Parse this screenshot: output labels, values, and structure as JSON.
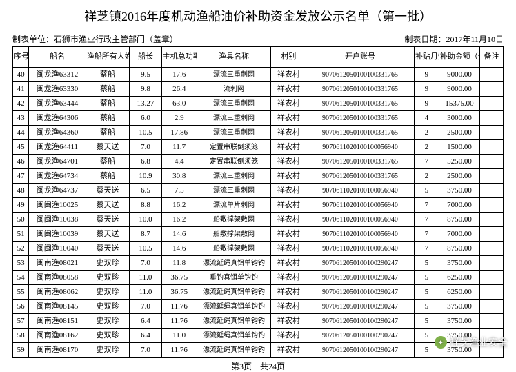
{
  "title": "祥芝镇2016年度机动渔船油价补助资金发放公示名单（第一批）",
  "meta": {
    "left_label": "制表单位：",
    "left_value": "石狮市渔业行政主管部门（盖章）",
    "right_label": "制表日期：",
    "right_value": "2017年11月10日"
  },
  "headers": {
    "seq": "序号",
    "ship": "船名",
    "owner": "渔船所有人姓　名",
    "len": "船长",
    "power": "主机总功率(kW)",
    "gear": "渔具名称",
    "village": "村别",
    "account": "开户账号",
    "months": "补贴月数",
    "amount": "补助金额（元）",
    "remark": "备注"
  },
  "rows": [
    {
      "seq": "40",
      "ship": "闽龙渔63312",
      "owner": "蔡船",
      "len": "9.5",
      "power": "17.6",
      "gear": "漂流三重刺网",
      "village": "祥农村",
      "account": "9070612050100100331765",
      "months": "9",
      "amount": "9000.00",
      "remark": ""
    },
    {
      "seq": "41",
      "ship": "闽龙渔63330",
      "owner": "蔡船",
      "len": "9.8",
      "power": "26.4",
      "gear": "流刺网",
      "village": "祥农村",
      "account": "9070612050100100331765",
      "months": "9",
      "amount": "9000.00",
      "remark": ""
    },
    {
      "seq": "42",
      "ship": "闽龙渔63444",
      "owner": "蔡船",
      "len": "13.27",
      "power": "63.0",
      "gear": "漂流三重刺网",
      "village": "祥农村",
      "account": "9070612050100100331765",
      "months": "9",
      "amount": "15375.00",
      "remark": ""
    },
    {
      "seq": "43",
      "ship": "闽龙渔64306",
      "owner": "蔡船",
      "len": "6.0",
      "power": "2.9",
      "gear": "漂流三重刺网",
      "village": "祥农村",
      "account": "9070612050100100331765",
      "months": "4",
      "amount": "3000.00",
      "remark": ""
    },
    {
      "seq": "44",
      "ship": "闽龙渔64360",
      "owner": "蔡船",
      "len": "10.5",
      "power": "17.86",
      "gear": "漂流三重刺网",
      "village": "祥农村",
      "account": "9070612050100100331765",
      "months": "2",
      "amount": "2500.00",
      "remark": ""
    },
    {
      "seq": "45",
      "ship": "闽龙渔64411",
      "owner": "蔡天送",
      "len": "7.0",
      "power": "11.7",
      "gear": "定置串联倒须笼",
      "village": "祥农村",
      "account": "9070611020100100056940",
      "months": "2",
      "amount": "1500.00",
      "remark": ""
    },
    {
      "seq": "46",
      "ship": "闽龙渔64701",
      "owner": "蔡船",
      "len": "6.8",
      "power": "4.4",
      "gear": "定置串联倒须笼",
      "village": "祥农村",
      "account": "9070612050100100331765",
      "months": "7",
      "amount": "5250.00",
      "remark": ""
    },
    {
      "seq": "47",
      "ship": "闽龙渔64734",
      "owner": "蔡船",
      "len": "10.9",
      "power": "30.8",
      "gear": "漂流三重刺网",
      "village": "祥农村",
      "account": "9070612050100100331765",
      "months": "2",
      "amount": "2500.00",
      "remark": ""
    },
    {
      "seq": "48",
      "ship": "闽龙渔64737",
      "owner": "蔡天送",
      "len": "6.5",
      "power": "7.5",
      "gear": "漂流三重刺网",
      "village": "祥农村",
      "account": "9070611020100100056940",
      "months": "5",
      "amount": "3750.00",
      "remark": ""
    },
    {
      "seq": "49",
      "ship": "闽闽渔10025",
      "owner": "蔡天送",
      "len": "8.8",
      "power": "16.2",
      "gear": "漂流单片刺网",
      "village": "祥农村",
      "account": "9070611020100100056940",
      "months": "7",
      "amount": "7000.00",
      "remark": ""
    },
    {
      "seq": "50",
      "ship": "闽闽渔10038",
      "owner": "蔡天送",
      "len": "10.0",
      "power": "16.2",
      "gear": "船敷撑架敷网",
      "village": "祥农村",
      "account": "9070611020100100056940",
      "months": "7",
      "amount": "8750.00",
      "remark": ""
    },
    {
      "seq": "51",
      "ship": "闽闽渔10039",
      "owner": "蔡天送",
      "len": "8.7",
      "power": "14.6",
      "gear": "船敷撑架敷网",
      "village": "祥农村",
      "account": "9070611020100100056940",
      "months": "7",
      "amount": "7000.00",
      "remark": ""
    },
    {
      "seq": "52",
      "ship": "闽闽渔10040",
      "owner": "蔡天送",
      "len": "10.5",
      "power": "14.6",
      "gear": "船敷撑架敷网",
      "village": "祥农村",
      "account": "9070611020100100056940",
      "months": "7",
      "amount": "8750.00",
      "remark": ""
    },
    {
      "seq": "53",
      "ship": "闽南渔08021",
      "owner": "史双珍",
      "len": "7.0",
      "power": "11.8",
      "gear": "漂流延绳真饵单钩钓",
      "village": "祥农村",
      "account": "9070612050100100290247",
      "months": "5",
      "amount": "3750.00",
      "remark": ""
    },
    {
      "seq": "54",
      "ship": "闽南渔08058",
      "owner": "史双珍",
      "len": "11.0",
      "power": "36.75",
      "gear": "垂钓真饵单钩钓",
      "village": "祥农村",
      "account": "9070612050100100290247",
      "months": "5",
      "amount": "6250.00",
      "remark": ""
    },
    {
      "seq": "55",
      "ship": "闽南渔08062",
      "owner": "史双珍",
      "len": "11.0",
      "power": "36.75",
      "gear": "漂流延绳真饵单钩钓",
      "village": "祥农村",
      "account": "9070612050100100290247",
      "months": "5",
      "amount": "6250.00",
      "remark": ""
    },
    {
      "seq": "56",
      "ship": "闽南渔08145",
      "owner": "史双珍",
      "len": "7.0",
      "power": "11.76",
      "gear": "漂流延绳真饵单钩钓",
      "village": "祥农村",
      "account": "9070612050100100290247",
      "months": "5",
      "amount": "3750.00",
      "remark": ""
    },
    {
      "seq": "57",
      "ship": "闽南渔08151",
      "owner": "史双珍",
      "len": "6.4",
      "power": "11.76",
      "gear": "漂流延绳真饵单钩钓",
      "village": "祥农村",
      "account": "9070612050100100290247",
      "months": "5",
      "amount": "3750.00",
      "remark": ""
    },
    {
      "seq": "58",
      "ship": "闽南渔08162",
      "owner": "史双珍",
      "len": "6.4",
      "power": "11.0",
      "gear": "漂流延绳真饵单钩钓",
      "village": "祥农村",
      "account": "9070612050100100290247",
      "months": "5",
      "amount": "3750.00",
      "remark": ""
    },
    {
      "seq": "59",
      "ship": "闽南渔08170",
      "owner": "史双珍",
      "len": "7.0",
      "power": "11.76",
      "gear": "漂流延绳真饵单钩钓",
      "village": "祥农村",
      "account": "9070612050100100290247",
      "months": "5",
      "amount": "3750.00",
      "remark": ""
    }
  ],
  "footer": "第3页　共24页",
  "watermark": "祥芝渔业安全"
}
